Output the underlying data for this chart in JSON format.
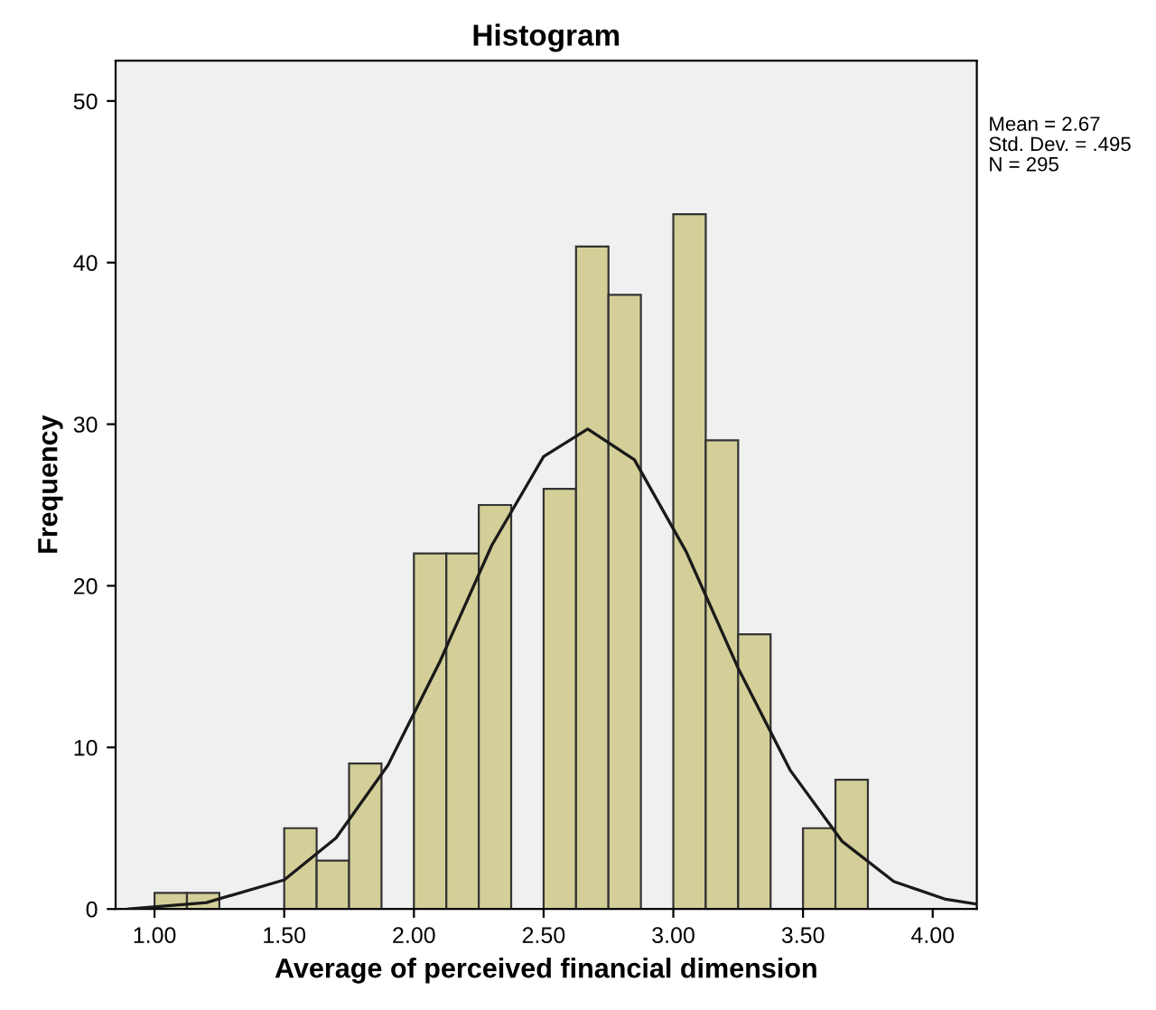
{
  "chart_data": {
    "type": "histogram",
    "title": "Histogram",
    "xlabel": "Average of perceived financial dimension",
    "ylabel": "Frequency",
    "series": [
      {
        "color": "#d4cf98",
        "bins": [
          1.0,
          1.125,
          1.25,
          1.375,
          1.5,
          1.625,
          1.75,
          1.875,
          2.0,
          2.125,
          2.25,
          2.375,
          2.5,
          2.625,
          2.75,
          2.875,
          3.0,
          3.125,
          3.25,
          3.375,
          3.5,
          3.625,
          3.75
        ],
        "values": [
          1,
          1,
          0,
          0,
          5,
          3,
          9,
          0,
          22,
          22,
          25,
          0,
          26,
          41,
          38,
          0,
          43,
          29,
          17,
          0,
          5,
          8
        ]
      },
      {
        "type": "line",
        "color": "#1a1a1a",
        "x": [
          0.9,
          1.2,
          1.5,
          1.7,
          1.9,
          2.1,
          2.3,
          2.5,
          2.67,
          2.85,
          3.05,
          3.25,
          3.45,
          3.65,
          3.85,
          4.05,
          4.17
        ],
        "values": [
          0,
          0.4,
          1.8,
          4.4,
          8.9,
          15.3,
          22.5,
          28,
          29.7,
          27.8,
          22.1,
          14.9,
          8.6,
          4.2,
          1.7,
          0.6,
          0.3
        ]
      }
    ],
    "xlim": [
      0.85,
      4.17
    ],
    "ylim": [
      0,
      52.5
    ],
    "xticks": [
      {
        "value": 1,
        "label": "1.00"
      },
      {
        "value": 1.5,
        "label": "1.50"
      },
      {
        "value": 2,
        "label": "2.00"
      },
      {
        "value": 2.5,
        "label": "2.50"
      },
      {
        "value": 3,
        "label": "3.00"
      },
      {
        "value": 3.5,
        "label": "3.50"
      },
      {
        "value": 4,
        "label": "4.00"
      }
    ],
    "yticks": [
      0,
      10,
      20,
      30,
      40,
      50
    ],
    "annotations": [
      "Mean = 2.67",
      "Std. Dev. = .495",
      "N = 295"
    ]
  }
}
